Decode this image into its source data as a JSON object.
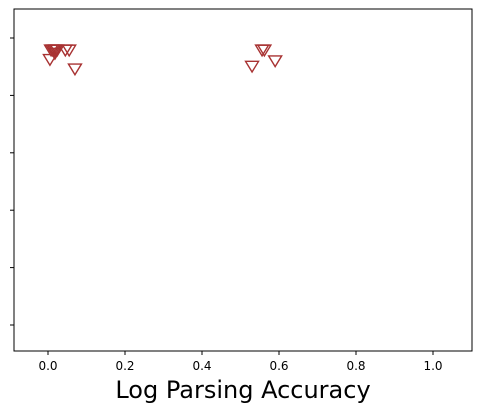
{
  "chart_data": {
    "type": "scatter",
    "title": "",
    "xlabel": "Log Parsing Accuracy",
    "ylabel": "",
    "xlim": [
      -0.09,
      1.1
    ],
    "x_ticks": [
      0.0,
      0.2,
      0.4,
      0.6,
      0.8,
      1.0
    ],
    "x_tick_labels": [
      "0.0",
      "0.2",
      "0.4",
      "0.6",
      "0.8",
      "1.0"
    ],
    "y_tick_count": 6,
    "grid": false,
    "legend": "none",
    "marker": "triangle-down-open",
    "marker_color": "#a83232",
    "series": [
      {
        "points": [
          {
            "x": 0.008,
            "level": 0
          },
          {
            "x": 0.012,
            "level": 0
          },
          {
            "x": 0.016,
            "level": 0
          },
          {
            "x": 0.02,
            "level": 0
          },
          {
            "x": 0.024,
            "level": 0
          },
          {
            "x": 0.045,
            "level": 0
          },
          {
            "x": 0.055,
            "level": 0
          },
          {
            "x": 0.018,
            "level": 0.12
          },
          {
            "x": 0.005,
            "level": 0.35
          },
          {
            "x": 0.07,
            "level": 0.7
          },
          {
            "x": 0.556,
            "level": 0
          },
          {
            "x": 0.562,
            "level": 0
          },
          {
            "x": 0.59,
            "level": 0.4
          },
          {
            "x": 0.53,
            "level": 0.6
          }
        ]
      }
    ]
  }
}
